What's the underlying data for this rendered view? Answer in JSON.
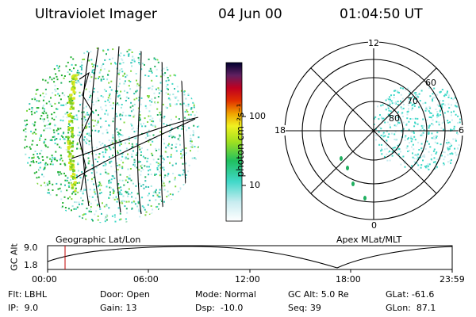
{
  "header": {
    "title": "Ultraviolet Imager",
    "date": "04 Jun 00",
    "time": "01:04:50 UT"
  },
  "colorbar": {
    "label": "photon cm⁻²s⁻¹",
    "ticks": [
      "100",
      "10"
    ]
  },
  "panels": {
    "left_caption": "Geographic Lat/Lon",
    "right_caption": "Apex MLat/MLT"
  },
  "polar": {
    "clock_labels": [
      "12",
      "18",
      "6",
      "0"
    ],
    "lat_labels": [
      "60",
      "70",
      "80"
    ]
  },
  "orbit": {
    "ylabel": "GC Alt",
    "yticks": [
      "9.0",
      "1.8"
    ],
    "xticks": [
      "00:00",
      "06:00",
      "12:00",
      "18:00",
      "23:59"
    ]
  },
  "info": {
    "flt": "Flt: LBHL",
    "ip": "IP:  9.0",
    "door": "Door: Open",
    "gain": "Gain: 13",
    "mode": "Mode: Normal",
    "dsp": "Dsp:  -10.0",
    "gcalt": "GC Alt: 5.0 Re",
    "seq": "Seq: 39",
    "glat": "GLat: -61.6",
    "glon": "GLon:  87.1"
  }
}
